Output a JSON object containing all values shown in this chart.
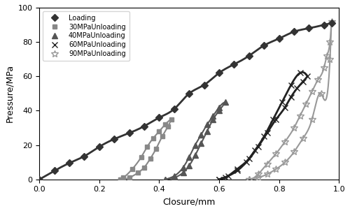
{
  "title": "",
  "xlabel": "Closure/mm",
  "ylabel": "Pressure/MPa",
  "xlim": [
    0,
    1.0
  ],
  "ylim": [
    0,
    100
  ],
  "xticks": [
    0,
    0.2,
    0.4,
    0.6,
    0.8,
    1.0
  ],
  "yticks": [
    0,
    20,
    40,
    60,
    80,
    100
  ],
  "background_color": "#ffffff",
  "loading": {
    "x": [
      0.0,
      0.05,
      0.1,
      0.15,
      0.2,
      0.25,
      0.3,
      0.35,
      0.4,
      0.45,
      0.5,
      0.55,
      0.6,
      0.65,
      0.7,
      0.75,
      0.8,
      0.85,
      0.9,
      0.95,
      0.975
    ],
    "y": [
      0.0,
      5.0,
      9.5,
      13.5,
      19.0,
      23.5,
      27.0,
      31.0,
      36.0,
      41.0,
      50.0,
      55.0,
      62.0,
      67.0,
      72.0,
      78.0,
      82.0,
      86.0,
      88.0,
      90.0,
      91.0
    ],
    "color": "#333333",
    "marker": "D",
    "markersize": 5,
    "label": "Loading",
    "linewidth": 2.0
  },
  "unload30": {
    "x_load": [
      0.27,
      0.3,
      0.33,
      0.35,
      0.37,
      0.39,
      0.41,
      0.43,
      0.44
    ],
    "y_load": [
      0.0,
      1.0,
      4.0,
      7.0,
      12.0,
      18.0,
      25.0,
      31.0,
      35.0
    ],
    "x_unload": [
      0.44,
      0.42,
      0.4,
      0.38,
      0.36,
      0.34,
      0.31,
      0.28,
      0.27
    ],
    "y_unload": [
      35.0,
      32.0,
      28.0,
      24.0,
      19.0,
      13.0,
      6.0,
      1.0,
      0.0
    ],
    "color": "#888888",
    "marker": "s",
    "markersize": 4,
    "label": "30MPaUnloading",
    "linewidth": 1.5
  },
  "unload40": {
    "x_load": [
      0.42,
      0.45,
      0.48,
      0.5,
      0.52,
      0.54,
      0.56,
      0.58,
      0.6,
      0.62
    ],
    "y_load": [
      0.0,
      1.0,
      4.0,
      8.0,
      14.0,
      21.0,
      28.0,
      35.0,
      40.0,
      45.0
    ],
    "x_unload": [
      0.62,
      0.6,
      0.58,
      0.56,
      0.54,
      0.52,
      0.5,
      0.48,
      0.45,
      0.42
    ],
    "y_unload": [
      45.0,
      42.0,
      37.0,
      32.0,
      26.0,
      20.0,
      13.0,
      7.0,
      2.0,
      0.0
    ],
    "color": "#555555",
    "marker": "^",
    "markersize": 6,
    "label": "40MPaUnloading",
    "linewidth": 1.5
  },
  "unload60": {
    "x_load": [
      0.6,
      0.63,
      0.66,
      0.69,
      0.72,
      0.75,
      0.78,
      0.81,
      0.84,
      0.87,
      0.895
    ],
    "y_load": [
      0.0,
      2.0,
      5.0,
      10.0,
      17.0,
      25.0,
      35.0,
      45.0,
      55.0,
      62.0,
      60.0
    ],
    "x_unload": [
      0.895,
      0.88,
      0.86,
      0.84,
      0.82,
      0.79,
      0.76,
      0.73,
      0.7,
      0.66,
      0.62,
      0.6
    ],
    "y_unload": [
      60.0,
      57.0,
      53.0,
      48.0,
      42.0,
      35.0,
      27.0,
      19.0,
      12.0,
      6.0,
      1.0,
      0.0
    ],
    "color": "#222222",
    "marker": "x",
    "markersize": 6,
    "label": "60MPaUnloading",
    "linewidth": 2.0
  },
  "unload90": {
    "x_load": [
      0.7,
      0.73,
      0.76,
      0.79,
      0.82,
      0.85,
      0.88,
      0.91,
      0.94,
      0.97,
      0.975
    ],
    "y_load": [
      0.0,
      1.0,
      3.0,
      6.0,
      10.0,
      16.0,
      24.0,
      35.0,
      50.0,
      70.0,
      92.0
    ],
    "x_unload": [
      0.975,
      0.97,
      0.96,
      0.95,
      0.93,
      0.91,
      0.89,
      0.87,
      0.85,
      0.82,
      0.79,
      0.76,
      0.73,
      0.7
    ],
    "y_unload": [
      92.0,
      80.0,
      72.0,
      65.0,
      58.0,
      51.0,
      44.0,
      37.0,
      30.0,
      22.0,
      15.0,
      9.0,
      3.0,
      0.0
    ],
    "color": "#999999",
    "marker": "*",
    "markersize": 7,
    "label": "90MPaUnloading",
    "linewidth": 1.5
  }
}
